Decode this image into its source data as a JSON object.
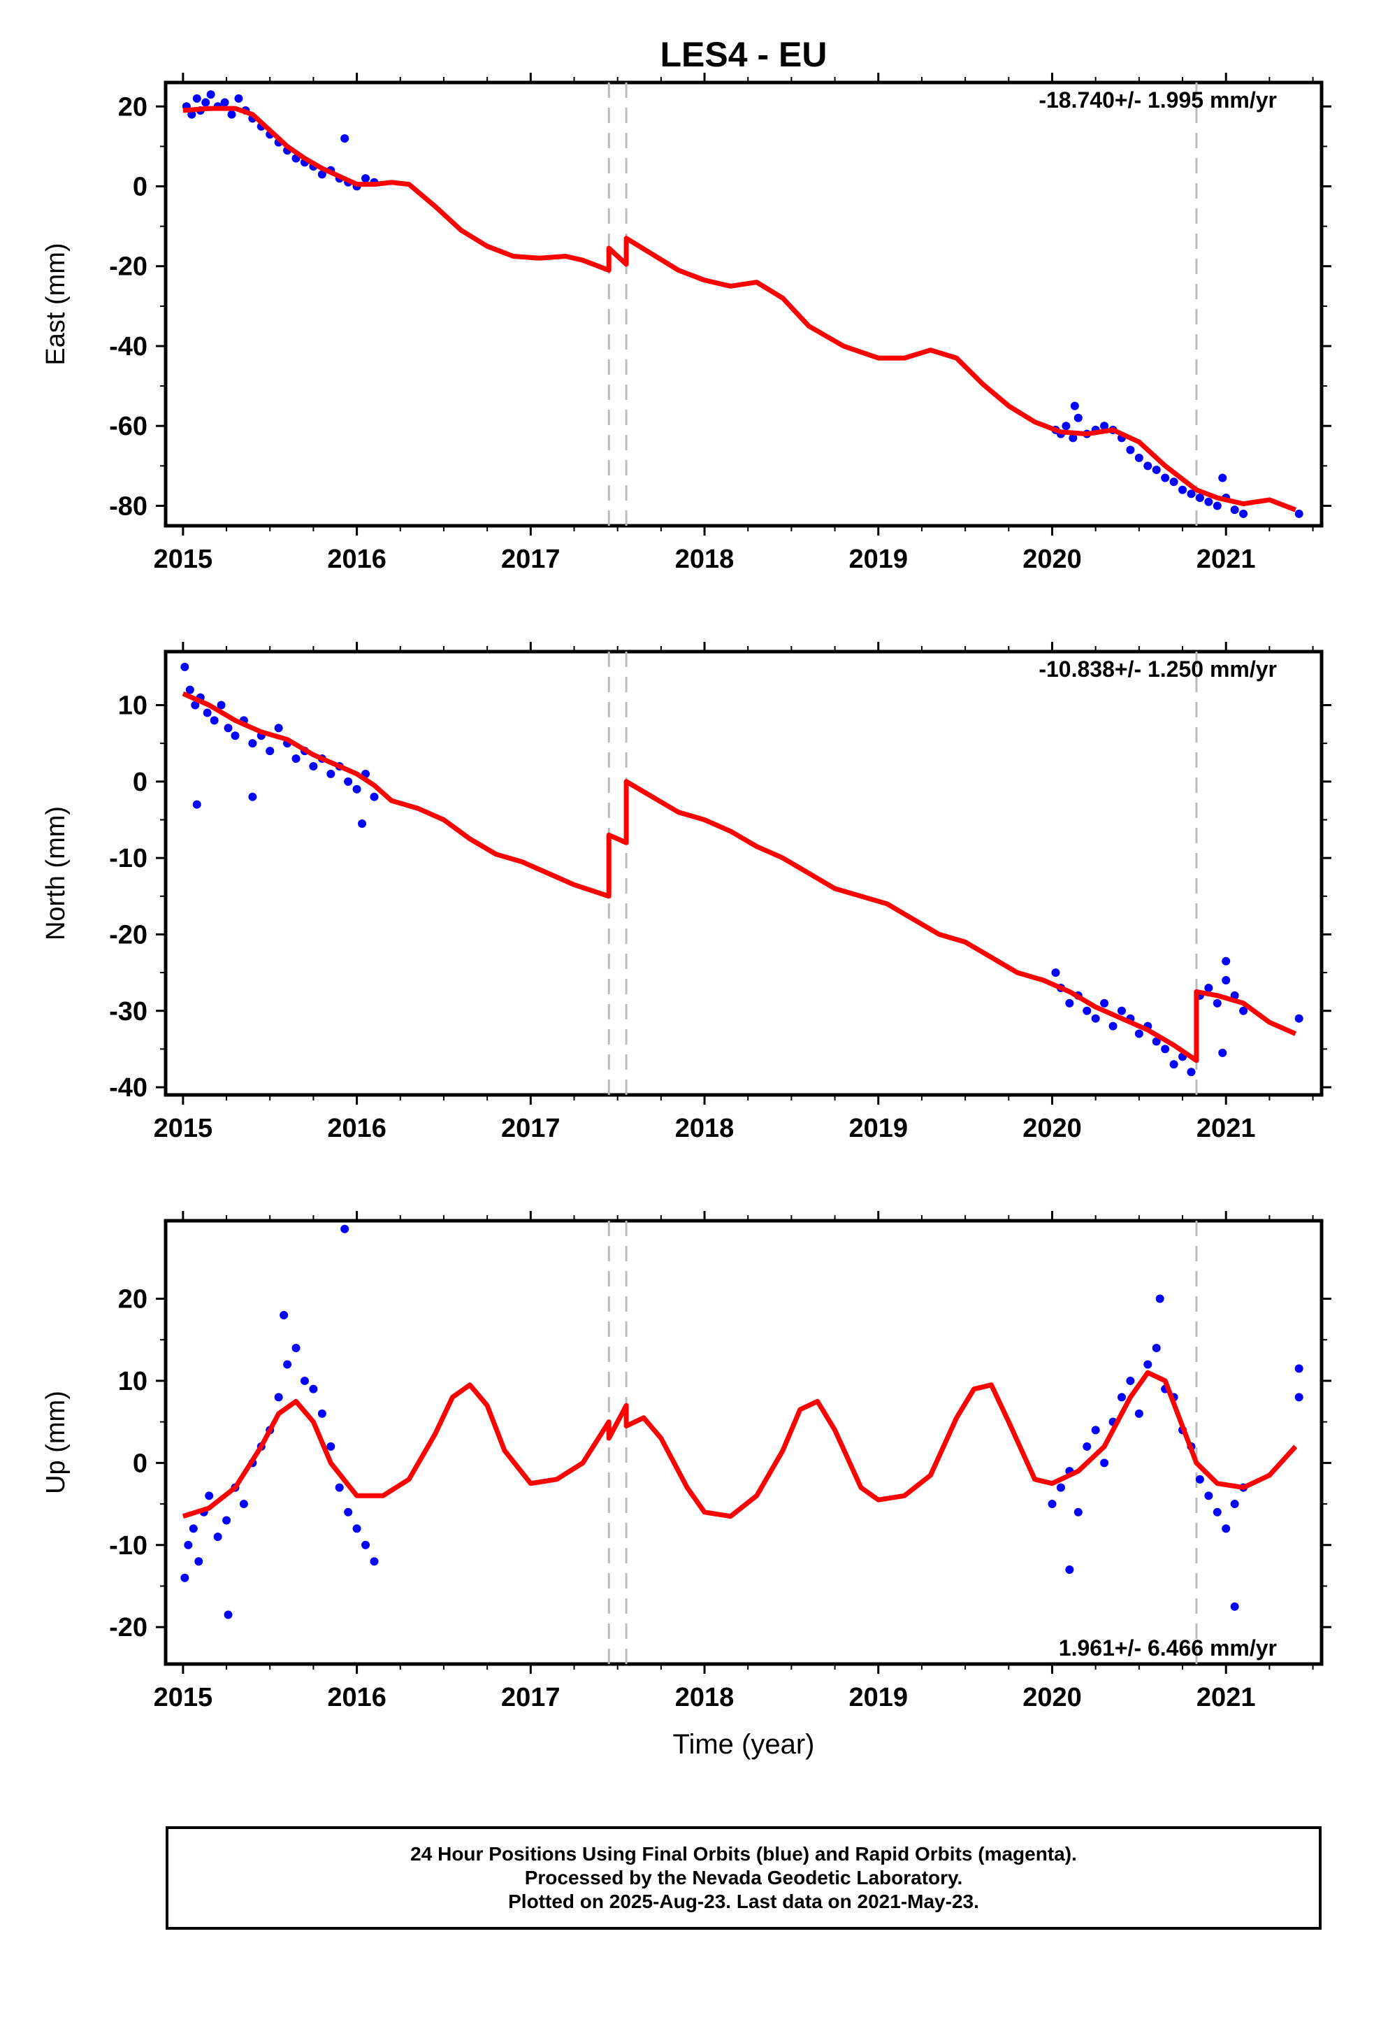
{
  "title": "LES4 - EU",
  "xlabel": "Time (year)",
  "footer": [
    "24 Hour Positions Using Final Orbits (blue) and Rapid Orbits (magenta).",
    "Processed by the Nevada Geodetic Laboratory.",
    "Plotted on 2025-Aug-23. Last data on 2021-May-23."
  ],
  "colors": {
    "data": "#0000ff",
    "model": "#ff0000",
    "event": "#bbbbbb",
    "axis": "#000000"
  },
  "chart_data": [
    {
      "type": "scatter",
      "name": "east",
      "ylabel": "East (mm)",
      "rate_text": "-18.740+/- 1.995 mm/yr",
      "xlim": [
        2014.9,
        2021.55
      ],
      "ylim": [
        -85,
        26
      ],
      "xticks": [
        2015,
        2016,
        2017,
        2018,
        2019,
        2020,
        2021
      ],
      "yticks": [
        20,
        0,
        -20,
        -40,
        -60,
        -80
      ],
      "event_lines": [
        2017.45,
        2017.55,
        2020.83
      ],
      "model_curve": {
        "x": [
          2015.0,
          2015.15,
          2015.3,
          2015.4,
          2015.5,
          2015.6,
          2015.7,
          2015.8,
          2015.9,
          2016.0,
          2016.1,
          2016.2,
          2016.3,
          2016.45,
          2016.6,
          2016.75,
          2016.9,
          2017.05,
          2017.2,
          2017.3,
          2017.45,
          2017.45,
          2017.55,
          2017.55,
          2017.7,
          2017.85,
          2018.0,
          2018.15,
          2018.3,
          2018.45,
          2018.6,
          2018.8,
          2019.0,
          2019.15,
          2019.3,
          2019.45,
          2019.6,
          2019.75,
          2019.9,
          2020.05,
          2020.2,
          2020.35,
          2020.5,
          2020.65,
          2020.83,
          2020.95,
          2021.1,
          2021.25,
          2021.4
        ],
        "y": [
          19,
          19.5,
          19.5,
          18,
          14,
          10,
          7,
          4.5,
          2.5,
          0.5,
          0.5,
          1,
          0.5,
          -5,
          -11,
          -15,
          -17.5,
          -18,
          -17.5,
          -18.5,
          -21,
          -15.5,
          -19.5,
          -13,
          -17,
          -21,
          -23.5,
          -25,
          -24,
          -28,
          -35,
          -40,
          -43,
          -43,
          -41,
          -43,
          -49.5,
          -55,
          -59,
          -61.5,
          -62,
          -61,
          -64,
          -70,
          -76,
          -78,
          -79.5,
          -78.5,
          -81
        ]
      },
      "points": {
        "x": [
          2015.02,
          2015.05,
          2015.08,
          2015.1,
          2015.13,
          2015.16,
          2015.2,
          2015.24,
          2015.28,
          2015.32,
          2015.36,
          2015.4,
          2015.45,
          2015.5,
          2015.55,
          2015.6,
          2015.65,
          2015.7,
          2015.75,
          2015.8,
          2015.85,
          2015.9,
          2015.95,
          2016.0,
          2016.05,
          2016.1,
          2015.93,
          2020.02,
          2020.05,
          2020.08,
          2020.12,
          2020.15,
          2020.2,
          2020.25,
          2020.3,
          2020.35,
          2020.4,
          2020.45,
          2020.5,
          2020.55,
          2020.6,
          2020.65,
          2020.7,
          2020.75,
          2020.8,
          2020.85,
          2020.9,
          2020.95,
          2021.0,
          2021.05,
          2021.1,
          2020.13,
          2020.98,
          2021.42
        ],
        "y": [
          20,
          18,
          22,
          19,
          21,
          23,
          20,
          21,
          18,
          22,
          19,
          17,
          15,
          13,
          11,
          9,
          7,
          6,
          5,
          3,
          4,
          2,
          1,
          0,
          2,
          1,
          12,
          -61,
          -62,
          -60,
          -63,
          -58,
          -62,
          -61,
          -60,
          -61,
          -63,
          -66,
          -68,
          -70,
          -71,
          -73,
          -74,
          -76,
          -77,
          -78,
          -79,
          -80,
          -78,
          -81,
          -82,
          -55,
          -73,
          -82
        ]
      }
    },
    {
      "type": "scatter",
      "name": "north",
      "ylabel": "North (mm)",
      "rate_text": "-10.838+/- 1.250 mm/yr",
      "xlim": [
        2014.9,
        2021.55
      ],
      "ylim": [
        -41,
        17
      ],
      "xticks": [
        2015,
        2016,
        2017,
        2018,
        2019,
        2020,
        2021
      ],
      "yticks": [
        10,
        0,
        -10,
        -20,
        -30,
        -40
      ],
      "event_lines": [
        2017.45,
        2017.55,
        2020.83
      ],
      "model_curve": {
        "x": [
          2015.0,
          2015.15,
          2015.3,
          2015.45,
          2015.6,
          2015.75,
          2015.9,
          2016.0,
          2016.1,
          2016.2,
          2016.35,
          2016.5,
          2016.65,
          2016.8,
          2016.95,
          2017.1,
          2017.25,
          2017.45,
          2017.45,
          2017.55,
          2017.55,
          2017.7,
          2017.85,
          2018.0,
          2018.15,
          2018.3,
          2018.45,
          2018.6,
          2018.75,
          2018.9,
          2019.05,
          2019.2,
          2019.35,
          2019.5,
          2019.65,
          2019.8,
          2019.95,
          2020.1,
          2020.25,
          2020.4,
          2020.55,
          2020.7,
          2020.83,
          2020.83,
          2020.95,
          2021.1,
          2021.25,
          2021.4
        ],
        "y": [
          11.5,
          10,
          8,
          6.5,
          5.5,
          3.5,
          2,
          1,
          -0.5,
          -2.5,
          -3.5,
          -5,
          -7.5,
          -9.5,
          -10.5,
          -12,
          -13.5,
          -15,
          -7,
          -8,
          0,
          -2,
          -4,
          -5,
          -6.5,
          -8.5,
          -10,
          -12,
          -14,
          -15,
          -16,
          -18,
          -20,
          -21,
          -23,
          -25,
          -26,
          -27.5,
          -29.5,
          -31,
          -32.5,
          -34.5,
          -36.5,
          -27.5,
          -28,
          -29,
          -31.5,
          -33
        ]
      },
      "points": {
        "x": [
          2015.01,
          2015.04,
          2015.07,
          2015.1,
          2015.14,
          2015.18,
          2015.22,
          2015.26,
          2015.3,
          2015.35,
          2015.4,
          2015.45,
          2015.5,
          2015.55,
          2015.6,
          2015.65,
          2015.7,
          2015.75,
          2015.8,
          2015.85,
          2015.9,
          2015.95,
          2016.0,
          2016.05,
          2016.1,
          2015.08,
          2015.4,
          2016.03,
          2020.02,
          2020.05,
          2020.1,
          2020.15,
          2020.2,
          2020.25,
          2020.3,
          2020.35,
          2020.4,
          2020.45,
          2020.5,
          2020.55,
          2020.6,
          2020.65,
          2020.7,
          2020.75,
          2020.8,
          2020.85,
          2020.9,
          2020.95,
          2021.0,
          2021.05,
          2021.1,
          2021.0,
          2020.98,
          2021.42
        ],
        "y": [
          15,
          12,
          10,
          11,
          9,
          8,
          10,
          7,
          6,
          8,
          5,
          6,
          4,
          7,
          5,
          3,
          4,
          2,
          3,
          1,
          2,
          0,
          -1,
          1,
          -2,
          -3,
          -2,
          -5.5,
          -25,
          -27,
          -29,
          -28,
          -30,
          -31,
          -29,
          -32,
          -30,
          -31,
          -33,
          -32,
          -34,
          -35,
          -37,
          -36,
          -38,
          -28,
          -27,
          -29,
          -26,
          -28,
          -30,
          -23.5,
          -35.5,
          -31
        ]
      }
    },
    {
      "type": "scatter",
      "name": "up",
      "ylabel": "Up (mm)",
      "rate_text": "1.961+/- 6.466 mm/yr",
      "xlim": [
        2014.9,
        2021.55
      ],
      "ylim": [
        -24.5,
        29.5
      ],
      "xticks": [
        2015,
        2016,
        2017,
        2018,
        2019,
        2020,
        2021
      ],
      "yticks": [
        20,
        10,
        0,
        -10,
        -20
      ],
      "event_lines": [
        2017.45,
        2017.55,
        2020.83
      ],
      "model_curve": {
        "x": [
          2015.0,
          2015.15,
          2015.3,
          2015.45,
          2015.55,
          2015.65,
          2015.75,
          2015.85,
          2016.0,
          2016.15,
          2016.3,
          2016.45,
          2016.55,
          2016.65,
          2016.75,
          2016.85,
          2017.0,
          2017.15,
          2017.3,
          2017.45,
          2017.45,
          2017.55,
          2017.55,
          2017.65,
          2017.75,
          2017.9,
          2018.0,
          2018.15,
          2018.3,
          2018.45,
          2018.55,
          2018.65,
          2018.75,
          2018.9,
          2019.0,
          2019.15,
          2019.3,
          2019.45,
          2019.55,
          2019.65,
          2019.75,
          2019.9,
          2020.0,
          2020.15,
          2020.3,
          2020.45,
          2020.55,
          2020.65,
          2020.83,
          2020.95,
          2021.1,
          2021.25,
          2021.4
        ],
        "y": [
          -6.5,
          -5.5,
          -3,
          2,
          6,
          7.5,
          5,
          0,
          -4,
          -4,
          -2,
          3.5,
          8,
          9.5,
          7,
          1.5,
          -2.5,
          -2,
          0,
          5,
          3,
          7,
          4.5,
          5.5,
          3,
          -3,
          -6,
          -6.5,
          -4,
          1.5,
          6.5,
          7.5,
          4,
          -3,
          -4.5,
          -4,
          -1.5,
          5.5,
          9,
          9.5,
          5,
          -2,
          -2.5,
          -1,
          2,
          8,
          11,
          10,
          0,
          -2.5,
          -3,
          -1.5,
          2
        ]
      },
      "points": {
        "x": [
          2015.01,
          2015.03,
          2015.06,
          2015.09,
          2015.12,
          2015.15,
          2015.2,
          2015.25,
          2015.3,
          2015.35,
          2015.4,
          2015.45,
          2015.5,
          2015.55,
          2015.6,
          2015.65,
          2015.7,
          2015.75,
          2015.8,
          2015.85,
          2015.9,
          2015.95,
          2016.0,
          2016.05,
          2016.1,
          2015.26,
          2015.93,
          2015.58,
          2020.0,
          2020.05,
          2020.1,
          2020.15,
          2020.2,
          2020.25,
          2020.3,
          2020.35,
          2020.4,
          2020.45,
          2020.5,
          2020.55,
          2020.6,
          2020.65,
          2020.7,
          2020.75,
          2020.8,
          2020.85,
          2020.9,
          2020.95,
          2021.0,
          2021.05,
          2021.1,
          2021.05,
          2020.1,
          2020.62,
          2021.42,
          2021.42
        ],
        "y": [
          -14,
          -10,
          -8,
          -12,
          -6,
          -4,
          -9,
          -7,
          -3,
          -5,
          0,
          2,
          4,
          8,
          12,
          14,
          10,
          9,
          6,
          2,
          -3,
          -6,
          -8,
          -10,
          -12,
          -18.5,
          28.5,
          18,
          -5,
          -3,
          -1,
          -6,
          2,
          4,
          0,
          5,
          8,
          10,
          6,
          12,
          14,
          9,
          8,
          4,
          2,
          -2,
          -4,
          -6,
          -8,
          -5,
          -3,
          -17.5,
          -13,
          20,
          11.5,
          8
        ]
      }
    }
  ]
}
